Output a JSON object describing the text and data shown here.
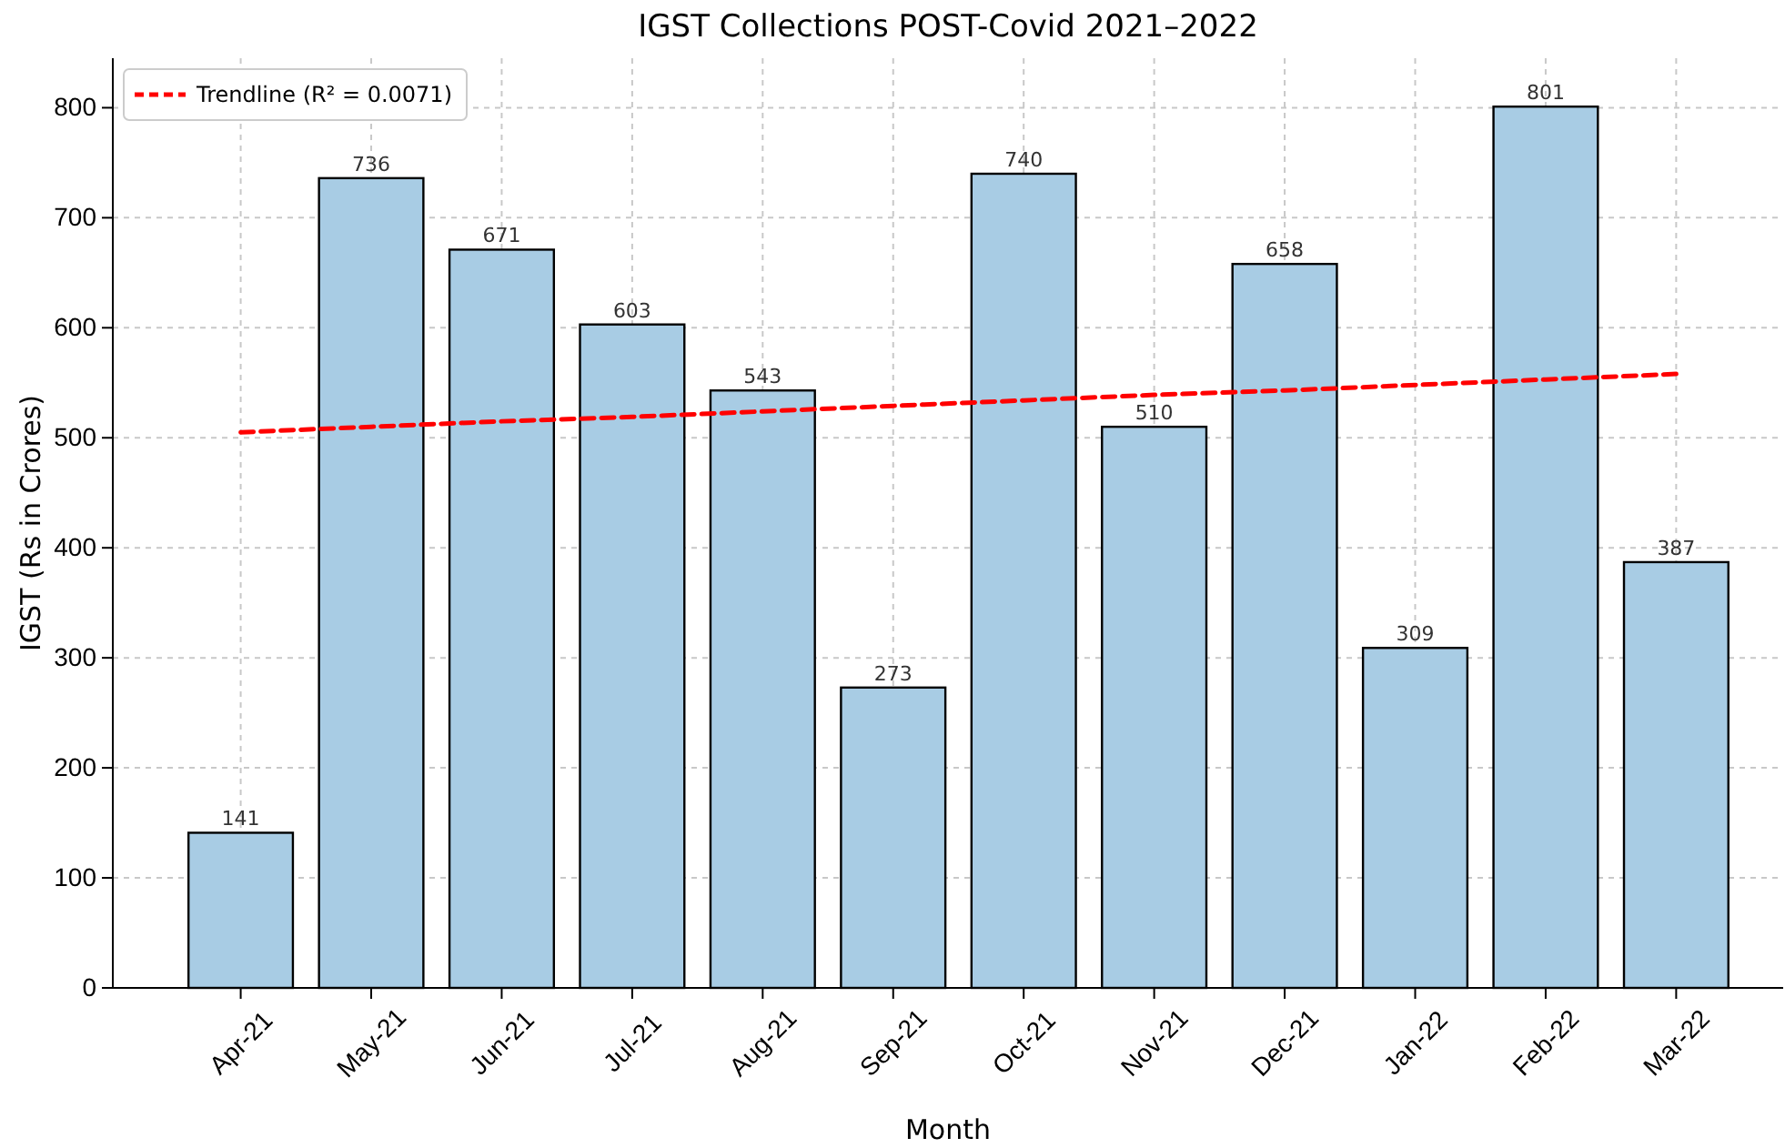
{
  "chart_data": {
    "type": "bar",
    "title": "IGST Collections POST-Covid 2021–2022",
    "xlabel": "Month",
    "ylabel": "IGST (Rs in Crores)",
    "categories": [
      "Apr-21",
      "May-21",
      "Jun-21",
      "Jul-21",
      "Aug-21",
      "Sep-21",
      "Oct-21",
      "Nov-21",
      "Dec-21",
      "Jan-22",
      "Feb-22",
      "Mar-22"
    ],
    "series": [
      {
        "color": "#a8cce4",
        "values": [
          141,
          736,
          671,
          603,
          543,
          273,
          740,
          510,
          658,
          309,
          801,
          387
        ],
        "value_labels": [
          "141",
          "736",
          "671",
          "603",
          "543",
          "273",
          "740",
          "510",
          "658",
          "309",
          "801",
          "387"
        ]
      },
      {
        "type": "line",
        "name": "Trendline (R² = 0.0071)",
        "color": "#ff0000",
        "line_style": "dashed",
        "marker": "none",
        "x": [
          "Apr-21",
          "May-21",
          "Jun-21",
          "Jul-21",
          "Aug-21",
          "Sep-21",
          "Oct-21",
          "Nov-21",
          "Dec-21",
          "Jan-22",
          "Feb-22",
          "Mar-22"
        ],
        "values": [
          505,
          510,
          515,
          519,
          524,
          529,
          534,
          539,
          543,
          548,
          553,
          558
        ]
      }
    ],
    "ylim": [
      0,
      845
    ],
    "yticks": [
      0,
      100,
      200,
      300,
      400,
      500,
      600,
      700,
      800
    ],
    "grid": true,
    "legend": "top left"
  }
}
